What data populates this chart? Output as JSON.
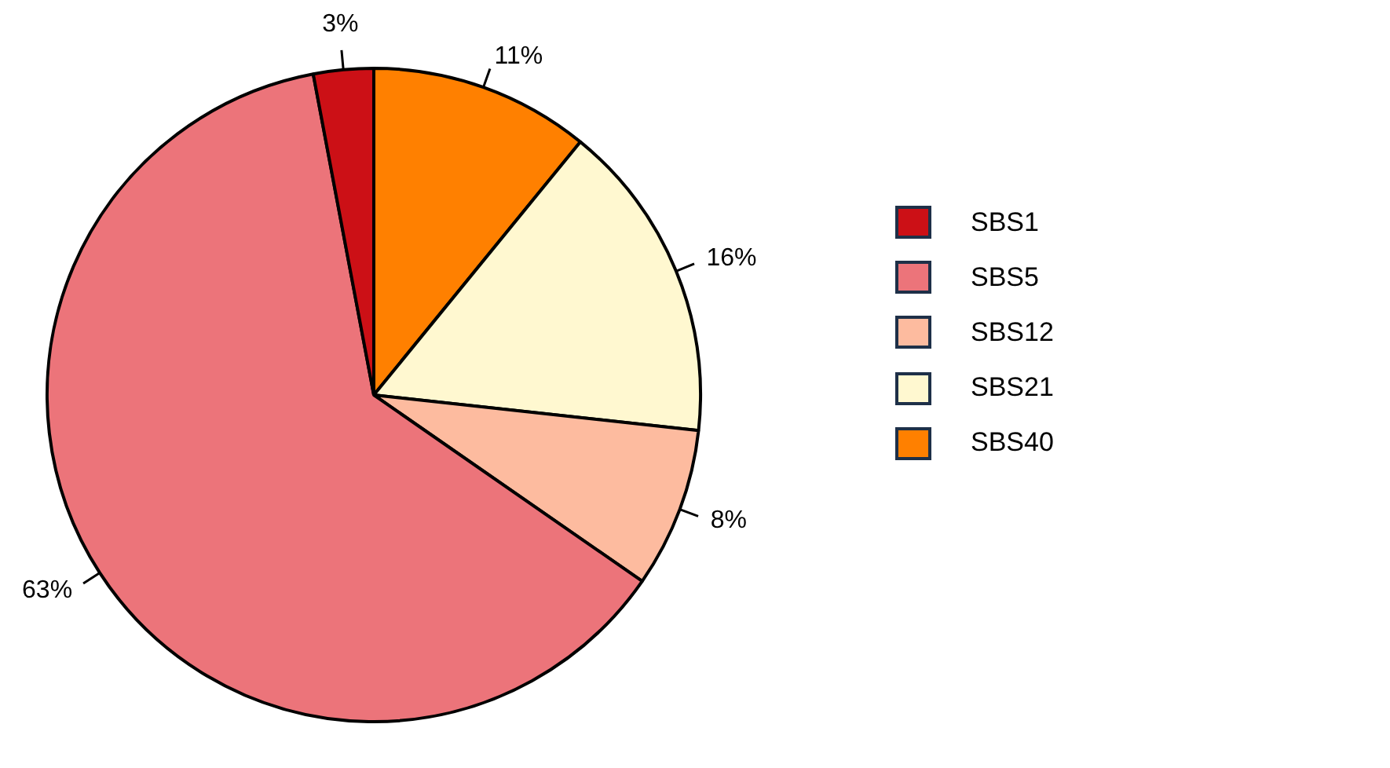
{
  "chart_data": {
    "type": "pie",
    "categories": [
      "SBS1",
      "SBS5",
      "SBS12",
      "SBS21",
      "SBS40"
    ],
    "values": [
      3,
      63,
      8,
      16,
      11
    ],
    "colors": [
      "#cc1016",
      "#ec747a",
      "#fdbb9f",
      "#fff8d0",
      "#ff8000"
    ],
    "value_labels": [
      "3%",
      "63%",
      "8%",
      "16%",
      "11%"
    ],
    "legend": "right"
  }
}
